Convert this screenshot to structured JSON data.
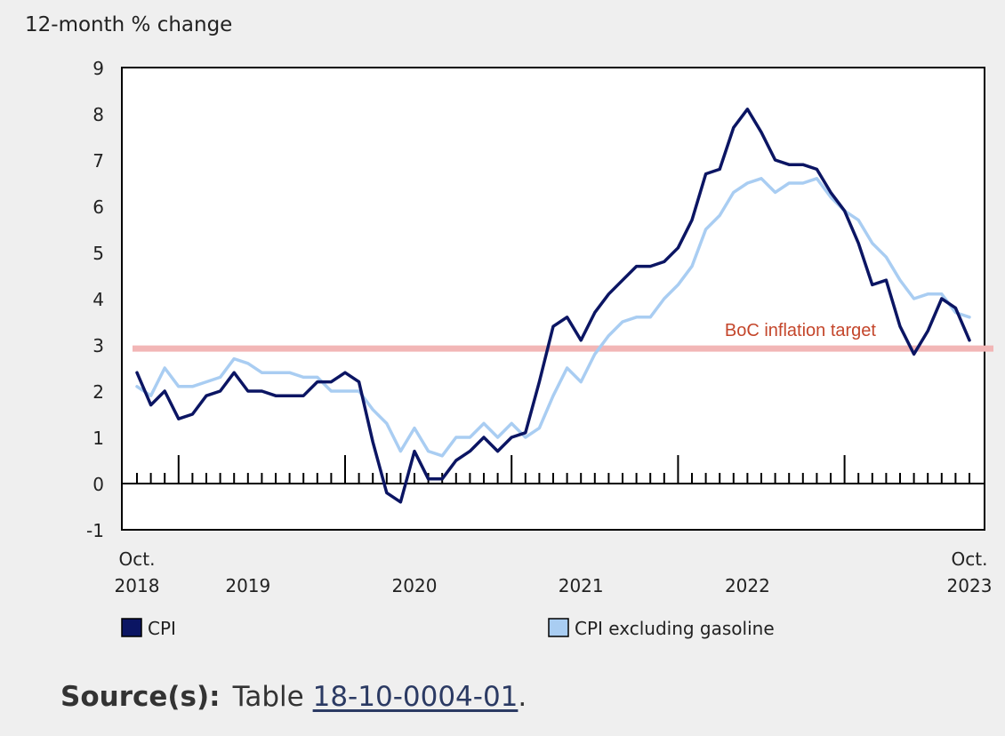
{
  "chart_data": {
    "type": "line",
    "ylabel": "12-month % change",
    "ylim": [
      -1,
      9
    ],
    "yticks": [
      -1,
      0,
      1,
      2,
      3,
      4,
      5,
      6,
      7,
      8,
      9
    ],
    "x_start": "2018-10",
    "x_end": "2023-10",
    "x_tick_labels": [
      {
        "month": "2018-10",
        "lines": [
          "Oct.",
          "2018"
        ]
      },
      {
        "month": "2019-06",
        "lines": [
          "",
          "2019"
        ]
      },
      {
        "month": "2020-06",
        "lines": [
          "",
          "2020"
        ]
      },
      {
        "month": "2021-06",
        "lines": [
          "",
          "2021"
        ]
      },
      {
        "month": "2022-06",
        "lines": [
          "",
          "2022"
        ]
      },
      {
        "month": "2023-10",
        "lines": [
          "Oct.",
          "2023"
        ]
      }
    ],
    "grid": false,
    "legend": "bottom",
    "series": [
      {
        "name": "CPI",
        "color": "#0b1563",
        "values": [
          2.4,
          1.7,
          2.0,
          1.4,
          1.5,
          1.9,
          2.0,
          2.4,
          2.0,
          2.0,
          1.9,
          1.9,
          1.9,
          2.2,
          2.2,
          2.4,
          2.2,
          0.9,
          -0.2,
          -0.4,
          0.7,
          0.1,
          0.1,
          0.5,
          0.7,
          1.0,
          0.7,
          1.0,
          1.1,
          2.2,
          3.4,
          3.6,
          3.1,
          3.7,
          4.1,
          4.4,
          4.7,
          4.7,
          4.8,
          5.1,
          5.7,
          6.7,
          6.8,
          7.7,
          8.1,
          7.6,
          7.0,
          6.9,
          6.9,
          6.8,
          6.3,
          5.9,
          5.2,
          4.3,
          4.4,
          3.4,
          2.8,
          3.3,
          4.0,
          3.8,
          3.1
        ]
      },
      {
        "name": "CPI excluding gasoline",
        "color": "#a9cdf2",
        "values": [
          2.1,
          1.9,
          2.5,
          2.1,
          2.1,
          2.2,
          2.3,
          2.7,
          2.6,
          2.4,
          2.4,
          2.4,
          2.3,
          2.3,
          2.0,
          2.0,
          2.0,
          1.6,
          1.3,
          0.7,
          1.2,
          0.7,
          0.6,
          1.0,
          1.0,
          1.3,
          1.0,
          1.3,
          1.0,
          1.2,
          1.9,
          2.5,
          2.2,
          2.8,
          3.2,
          3.5,
          3.6,
          3.6,
          4.0,
          4.3,
          4.7,
          5.5,
          5.8,
          6.3,
          6.5,
          6.6,
          6.3,
          6.5,
          6.5,
          6.6,
          6.2,
          5.9,
          5.7,
          5.2,
          4.9,
          4.4,
          4.0,
          4.1,
          4.1,
          3.7,
          3.6
        ]
      }
    ],
    "reference_line": {
      "label": "BoC inflation target",
      "value": 2.92,
      "color": "#f2b6b6",
      "label_color": "#c4462b"
    }
  },
  "source": {
    "label": "Source(s):",
    "prefix": "Table ",
    "link_text": "18-10-0004-01",
    "suffix": "."
  }
}
